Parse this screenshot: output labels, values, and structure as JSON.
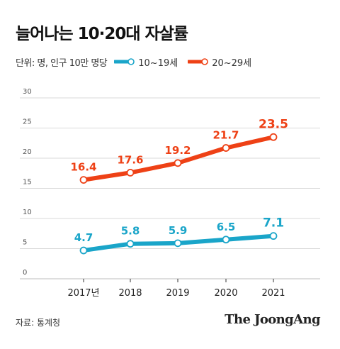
{
  "title": "늘어나는 10·20대 자살률",
  "unit_label": "단위: 명, 인구 10만 명당",
  "source": "자료: 통계청",
  "brand": "The JoongAng",
  "colors": {
    "series_a": "#1aa5c9",
    "series_b": "#ee4116",
    "grid": "#d9d9d9",
    "axis_text": "#555555"
  },
  "chart_data": {
    "type": "line",
    "title": "늘어나는 10·20대 자살률",
    "xlabel": "",
    "ylabel": "",
    "categories": [
      "2017년",
      "2018",
      "2019",
      "2020",
      "2021"
    ],
    "ylim": [
      0,
      30
    ],
    "yticks": [
      "0",
      "5",
      "10",
      "15",
      "20",
      "25",
      "30"
    ],
    "grid": true,
    "legend_position": "top-left",
    "series": [
      {
        "name": "10~19세",
        "color": "#1aa5c9",
        "values": [
          4.7,
          5.8,
          5.9,
          6.5,
          7.1
        ],
        "labels": [
          "4.7",
          "5.8",
          "5.9",
          "6.5",
          "7.1"
        ]
      },
      {
        "name": "20~29세",
        "color": "#ee4116",
        "values": [
          16.4,
          17.6,
          19.2,
          21.7,
          23.5
        ],
        "labels": [
          "16.4",
          "17.6",
          "19.2",
          "21.7",
          "23.5"
        ]
      }
    ]
  }
}
